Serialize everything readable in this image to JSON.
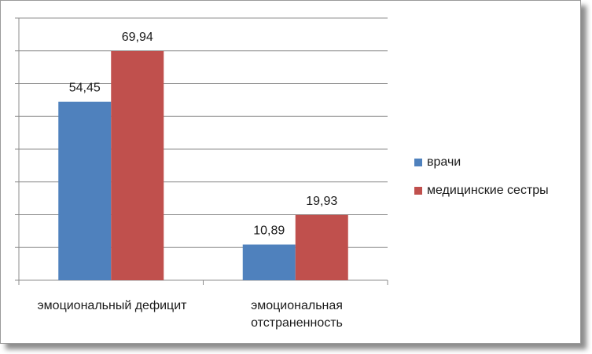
{
  "chart_data": {
    "type": "bar",
    "categories": [
      "эмоциональный дефицит",
      "эмоциональная отстраненность"
    ],
    "category_lines": [
      [
        "эмоциональный дефицит"
      ],
      [
        "эмоциональная",
        "отстраненность"
      ]
    ],
    "series": [
      {
        "name": "врачи",
        "values": [
          54.45,
          10.89
        ],
        "labels": [
          "54,45",
          "10,89"
        ],
        "color": "#4f81bd"
      },
      {
        "name": "медицинские сестры",
        "values": [
          69.94,
          19.93
        ],
        "labels": [
          "69,94",
          "19,93"
        ],
        "color": "#c0504d"
      }
    ],
    "ylim": [
      0,
      80
    ],
    "grid": true,
    "legend_position": "right",
    "title": "",
    "xlabel": "",
    "ylabel": ""
  }
}
